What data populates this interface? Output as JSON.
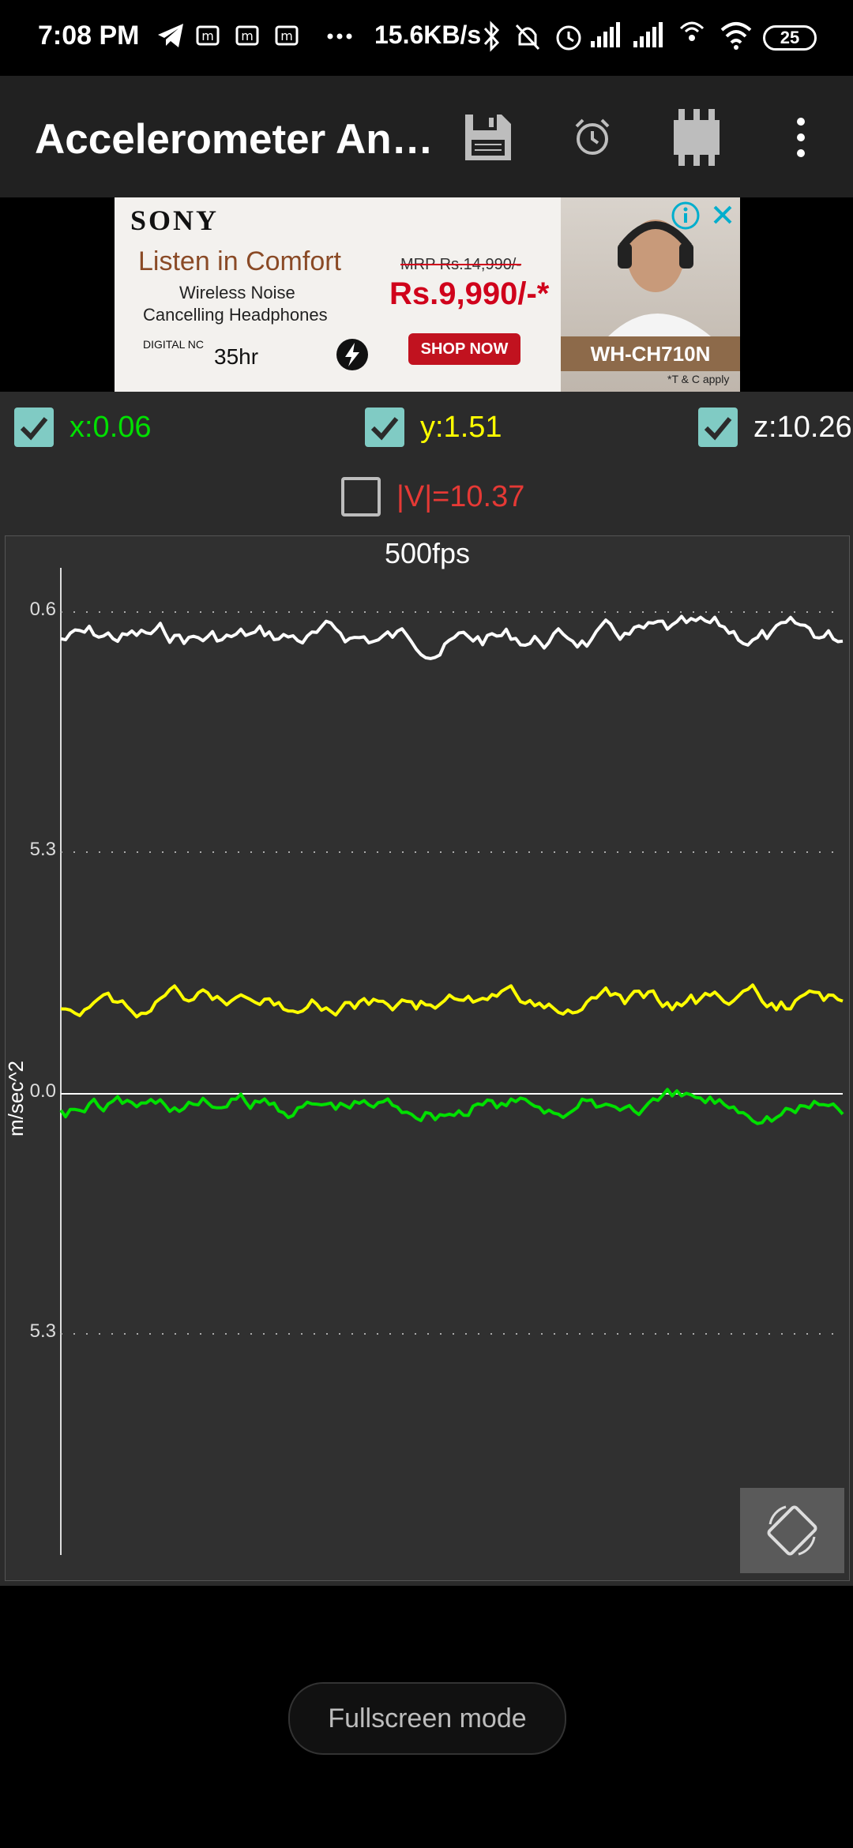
{
  "status_bar": {
    "time": "7:08 PM",
    "network_speed": "15.6KB/s",
    "battery": "25",
    "icons": [
      "telegram-icon",
      "m-notification-icon",
      "m-notification-icon",
      "m-notification-icon",
      "more-dots-icon",
      "bluetooth-icon",
      "mute-icon",
      "alarm-icon",
      "signal-icon",
      "signal-icon",
      "hotspot-icon",
      "wifi-icon",
      "battery-icon"
    ]
  },
  "app_bar": {
    "title": "Accelerometer An…",
    "actions": [
      "save-icon",
      "alarm-clock-icon",
      "chip-icon",
      "overflow-menu-icon"
    ]
  },
  "ad": {
    "brand": "SONY",
    "headline": "Listen in Comfort",
    "sub1": "Wireless Noise",
    "sub2": "Cancelling Headphones",
    "mrp": "MRP Rs.14,990/-",
    "price": "Rs.9,990/-*",
    "cta": "SHOP NOW",
    "model": "WH-CH710N",
    "tc": "*T & C apply",
    "digital": "DIGITAL NC",
    "battery_hours": "35hr"
  },
  "readouts": {
    "x": {
      "label": "x:0.06",
      "checked": true,
      "color": "#00e000"
    },
    "y": {
      "label": "y:1.51",
      "checked": true,
      "color": "#ffff00"
    },
    "z": {
      "label": "z:10.26",
      "checked": true,
      "color": "#ffffff"
    },
    "v": {
      "label": "|V|=10.37",
      "checked": false,
      "color": "#e53935"
    }
  },
  "graph": {
    "fps": "500fps",
    "ylabel": "m/sec^2",
    "tick_labels": [
      "0.6",
      "5.3",
      "0.0",
      "5.3"
    ]
  },
  "bottom": {
    "fullscreen_label": "Fullscreen mode"
  }
}
